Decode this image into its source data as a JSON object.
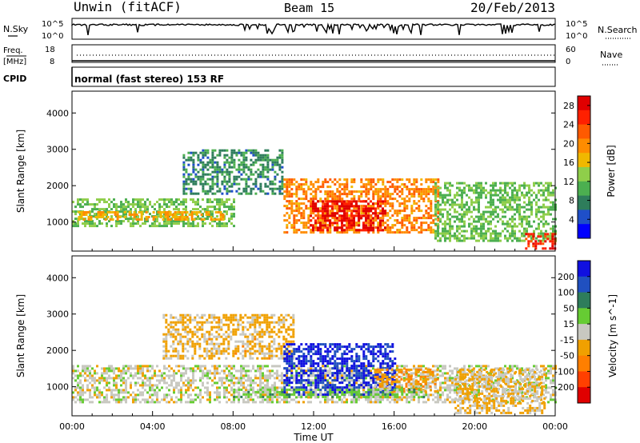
{
  "header": {
    "station": "Unwin (fitACF)",
    "beam": "Beam 15",
    "date": "20/Feb/2013"
  },
  "status_panels": {
    "nsky_label": "N.Sky",
    "nsearch_label": "N.Search",
    "nsky_ticks": [
      "10^5",
      "10^0"
    ],
    "nsearch_ticks": [
      "10^5",
      "10^0"
    ],
    "freq_label_line1": "Freq.",
    "freq_label_line2": "[MHz]",
    "freq_ticks": [
      "18",
      "8"
    ],
    "nave_label": "Nave",
    "nave_ticks": [
      "60",
      "0"
    ],
    "cpid_label": "CPID",
    "cpid_text": "normal (fast stereo) 153 RF"
  },
  "colors": {
    "power_scale": [
      "#0000ff",
      "#1f4fc8",
      "#2e7d5b",
      "#4caf50",
      "#8fce4a",
      "#f0b800",
      "#ff8c00",
      "#ff5a00",
      "#ff2000",
      "#e00000"
    ],
    "velocity_scale": [
      "#1010e0",
      "#2050c0",
      "#2e7d5b",
      "#66cc33",
      "#c8c8c0",
      "#f0a000",
      "#ff7f00",
      "#ff4000",
      "#e00000"
    ]
  },
  "chart_data": [
    {
      "type": "heatmap",
      "title": "",
      "xlabel": "",
      "ylabel": "Slant Range [km]",
      "x_ticks": [
        "00:00",
        "04:00",
        "08:00",
        "12:00",
        "16:00",
        "20:00",
        "00:00"
      ],
      "xlim_hours": [
        0,
        24
      ],
      "ylim": [
        200,
        4600
      ],
      "y_ticks": [
        1000,
        2000,
        3000,
        4000
      ],
      "colorbar": {
        "label": "Power [dB]",
        "ticks": [
          4,
          8,
          12,
          16,
          20,
          24,
          28
        ],
        "range": [
          0,
          30
        ]
      },
      "regions": [
        {
          "name": "main-band",
          "from_h": 0.0,
          "to_h": 8.0,
          "range_lo": 900,
          "range_hi": 1650,
          "value": 12
        },
        {
          "name": "band-core",
          "from_h": 0.3,
          "to_h": 7.5,
          "range_lo": 1050,
          "range_hi": 1300,
          "value": 18
        },
        {
          "name": "upper-scatter",
          "from_h": 5.5,
          "to_h": 10.5,
          "range_lo": 1800,
          "range_hi": 3000,
          "value": 8
        },
        {
          "name": "noon-enhancement",
          "from_h": 10.5,
          "to_h": 18.2,
          "range_lo": 700,
          "range_hi": 2200,
          "value": 20
        },
        {
          "name": "noon-peak",
          "from_h": 11.8,
          "to_h": 15.5,
          "range_lo": 800,
          "range_hi": 1600,
          "value": 28
        },
        {
          "name": "evening-band",
          "from_h": 18.0,
          "to_h": 24.0,
          "range_lo": 500,
          "range_hi": 2100,
          "value": 12
        },
        {
          "name": "late-peak",
          "from_h": 22.5,
          "to_h": 24.0,
          "range_lo": 300,
          "range_hi": 700,
          "value": 26
        }
      ]
    },
    {
      "type": "heatmap",
      "title": "",
      "xlabel": "Time UT",
      "ylabel": "Slant Range [km]",
      "x_ticks": [
        "00:00",
        "04:00",
        "08:00",
        "12:00",
        "16:00",
        "20:00",
        "00:00"
      ],
      "xlim_hours": [
        0,
        24
      ],
      "ylim": [
        200,
        4600
      ],
      "y_ticks": [
        1000,
        2000,
        3000,
        4000
      ],
      "colorbar": {
        "label": "Velocity [m s^-1]",
        "ticks": [
          200,
          100,
          50,
          15,
          -15,
          -50,
          -100,
          -200
        ],
        "range": [
          -250,
          250
        ]
      },
      "regions": [
        {
          "name": "ground-scatter",
          "from_h": 0.0,
          "to_h": 24.0,
          "range_lo": 600,
          "range_hi": 1600,
          "value": 0
        },
        {
          "name": "upper-mixed",
          "from_h": 4.5,
          "to_h": 11.0,
          "range_lo": 1800,
          "range_hi": 3000,
          "value": -40
        },
        {
          "name": "noon-positive",
          "from_h": 10.5,
          "to_h": 16.0,
          "range_lo": 800,
          "range_hi": 2200,
          "value": 200
        },
        {
          "name": "noon-negative",
          "from_h": 15.0,
          "to_h": 18.2,
          "range_lo": 900,
          "range_hi": 1500,
          "value": -60
        },
        {
          "name": "green-fringe",
          "from_h": 8.0,
          "to_h": 17.5,
          "range_lo": 700,
          "range_hi": 950,
          "value": 50
        },
        {
          "name": "evening-mixed",
          "from_h": 19.0,
          "to_h": 23.5,
          "range_lo": 300,
          "range_hi": 1500,
          "value": -30
        }
      ]
    }
  ]
}
